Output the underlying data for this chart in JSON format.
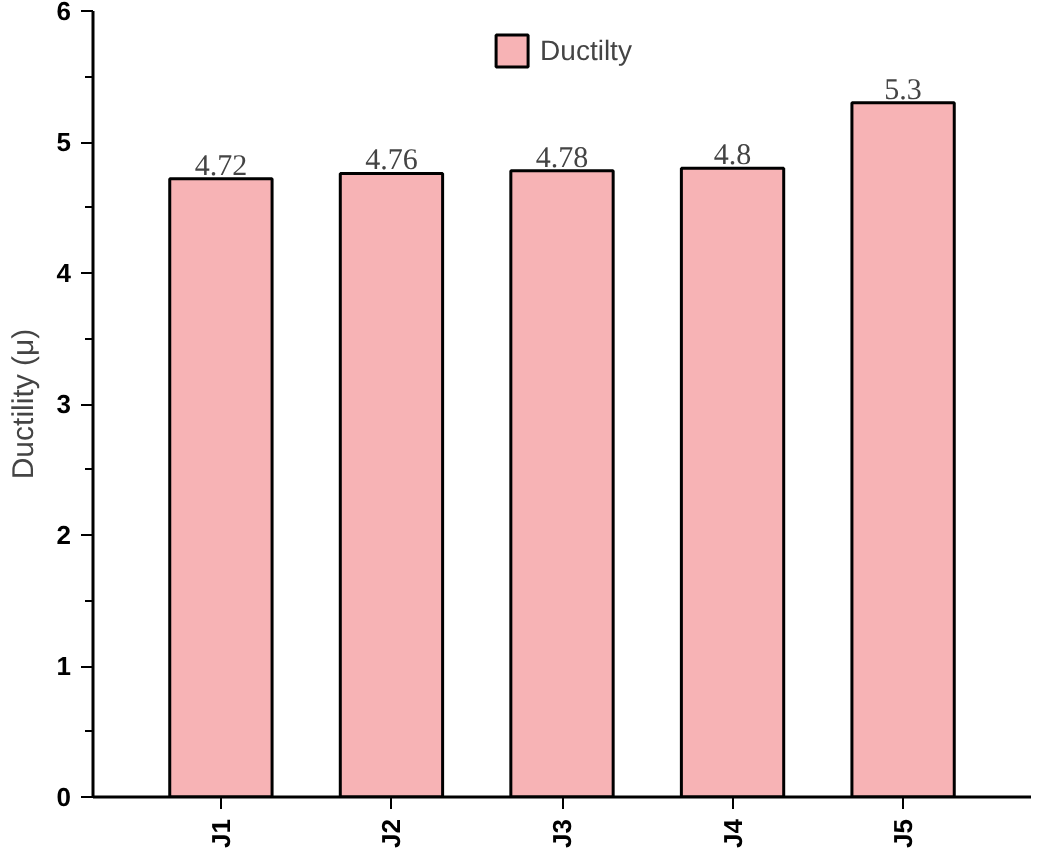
{
  "chart_data": {
    "type": "bar",
    "ylabel": "Ductility (μ)",
    "categories": [
      "J1",
      "J2",
      "J3",
      "J4",
      "J5"
    ],
    "series": [
      {
        "name": "Ductilty",
        "color": "#f7b3b5",
        "values": [
          4.72,
          4.76,
          4.78,
          4.8,
          5.3
        ]
      }
    ],
    "ylim": [
      0,
      6
    ],
    "yticks": [
      0,
      1,
      2,
      3,
      4,
      5,
      6
    ],
    "data_labels": true,
    "legend": "top",
    "grid": false
  }
}
